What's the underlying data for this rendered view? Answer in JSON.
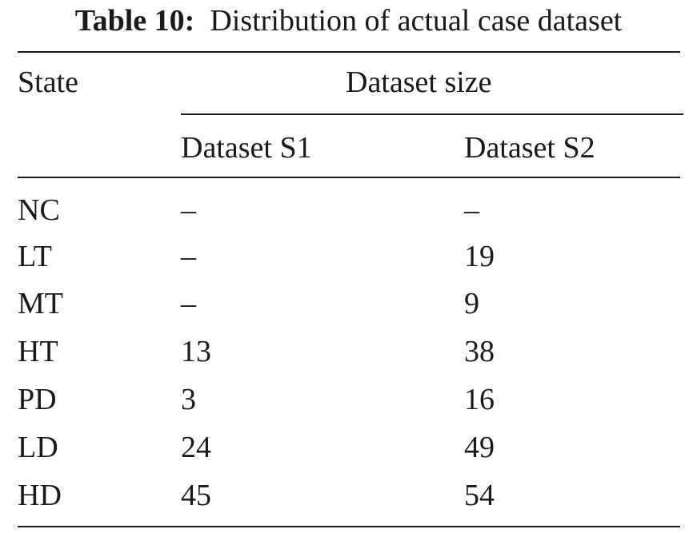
{
  "caption": {
    "label": "Table 10:",
    "text": "Distribution of actual case dataset"
  },
  "headers": {
    "state": "State",
    "group": "Dataset size",
    "col1": "Dataset S1",
    "col2": "Dataset S2"
  },
  "rows": [
    {
      "state": "NC",
      "s1": "–",
      "s2": "–"
    },
    {
      "state": "LT",
      "s1": "–",
      "s2": "19"
    },
    {
      "state": "MT",
      "s1": "–",
      "s2": "9"
    },
    {
      "state": "HT",
      "s1": "13",
      "s2": "38"
    },
    {
      "state": "PD",
      "s1": "3",
      "s2": "16"
    },
    {
      "state": "LD",
      "s1": "24",
      "s2": "49"
    },
    {
      "state": "HD",
      "s1": "45",
      "s2": "54"
    }
  ]
}
